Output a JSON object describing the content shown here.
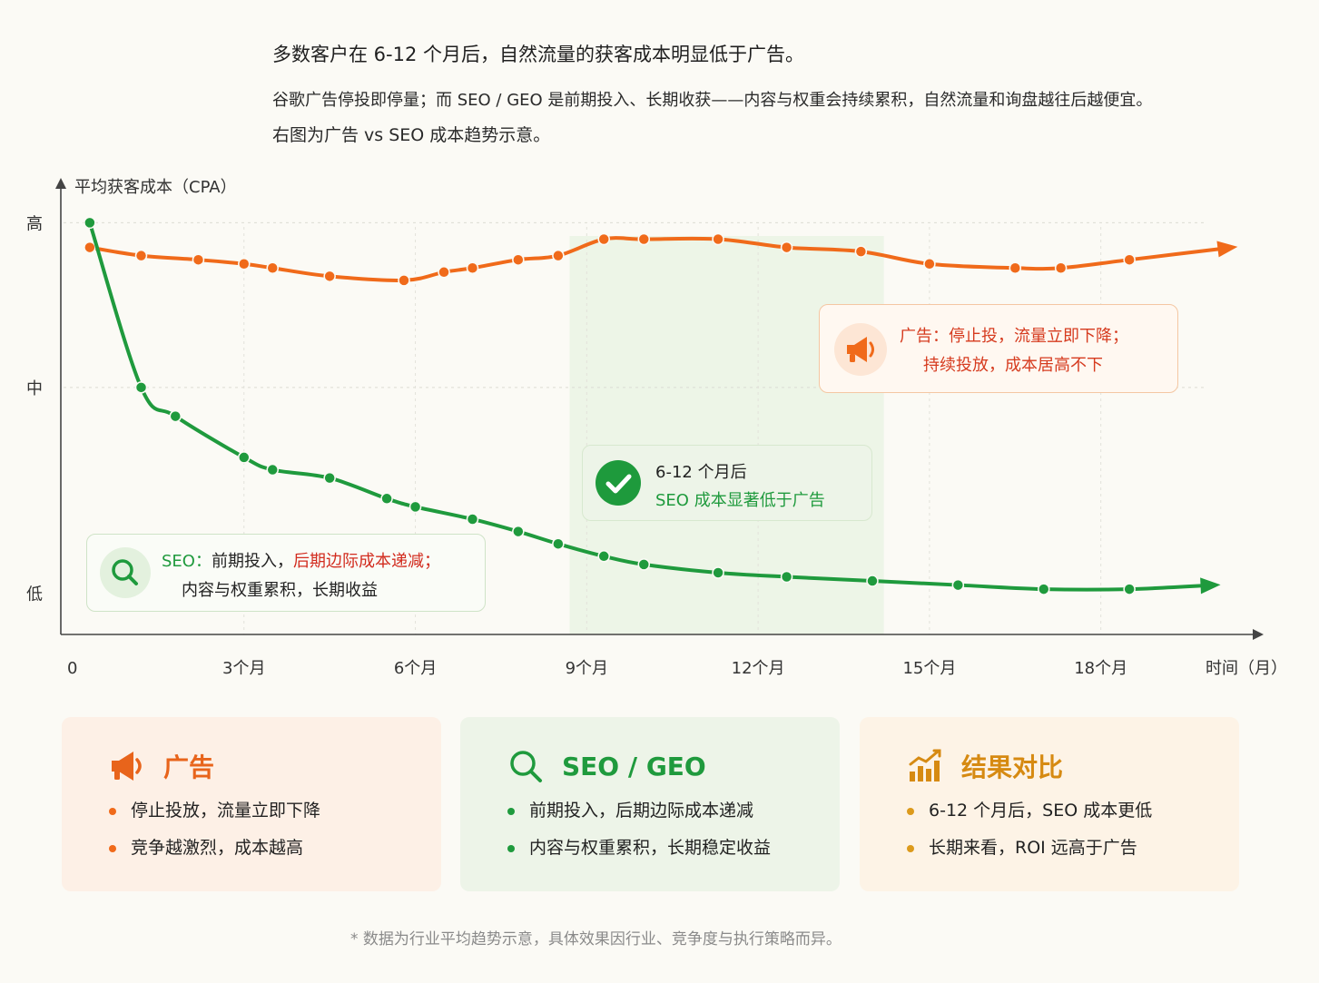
{
  "intro": {
    "headline": "多数客户在 6-12 个月后，自然流量的获客成本明显低于广告。",
    "line1": "谷歌广告停投即停量；而 SEO / GEO 是前期投入、长期收获——内容与权重会持续累积，自然流量和询盘越往后越便宜。",
    "line2": "右图为广告 vs SEO 成本趋势示意。"
  },
  "chart_data": {
    "type": "line",
    "ylabel": "平均获客成本（CPA）",
    "xlabel": "时间（月）",
    "x_ticks": [
      {
        "x": 0,
        "label": "0"
      },
      {
        "x": 3,
        "label": "3个月"
      },
      {
        "x": 6,
        "label": "6个月"
      },
      {
        "x": 9,
        "label": "9个月"
      },
      {
        "x": 12,
        "label": "12个月"
      },
      {
        "x": 15,
        "label": "15个月"
      },
      {
        "x": 18,
        "label": "18个月"
      }
    ],
    "y_ticks": [
      {
        "y": 0.1,
        "label": "低"
      },
      {
        "y": 0.6,
        "label": "中"
      },
      {
        "y": 1.0,
        "label": "高"
      }
    ],
    "xlim": [
      0,
      20.5
    ],
    "ylim": [
      0,
      1.1
    ],
    "highlight_range": [
      8.7,
      14.2
    ],
    "grid": true,
    "series": [
      {
        "name": "广告",
        "color": "#f06a1a",
        "points": [
          [
            0.3,
            0.94
          ],
          [
            1.2,
            0.92
          ],
          [
            2.2,
            0.91
          ],
          [
            3.0,
            0.9
          ],
          [
            3.5,
            0.89
          ],
          [
            4.5,
            0.87
          ],
          [
            5.8,
            0.86
          ],
          [
            6.5,
            0.88
          ],
          [
            7.0,
            0.89
          ],
          [
            7.8,
            0.91
          ],
          [
            8.5,
            0.92
          ],
          [
            9.3,
            0.96
          ],
          [
            10.0,
            0.96
          ],
          [
            11.3,
            0.96
          ],
          [
            12.5,
            0.94
          ],
          [
            13.8,
            0.93
          ],
          [
            15.0,
            0.9
          ],
          [
            16.5,
            0.89
          ],
          [
            17.3,
            0.89
          ],
          [
            18.5,
            0.91
          ],
          [
            20.3,
            0.94
          ]
        ]
      },
      {
        "name": "SEO",
        "color": "#1f9a3d",
        "points": [
          [
            0.3,
            1.0
          ],
          [
            1.2,
            0.6
          ],
          [
            1.8,
            0.53
          ],
          [
            3.0,
            0.43
          ],
          [
            3.5,
            0.4
          ],
          [
            4.5,
            0.38
          ],
          [
            5.5,
            0.33
          ],
          [
            6.0,
            0.31
          ],
          [
            7.0,
            0.28
          ],
          [
            7.8,
            0.25
          ],
          [
            8.5,
            0.22
          ],
          [
            9.3,
            0.19
          ],
          [
            10.0,
            0.17
          ],
          [
            11.3,
            0.15
          ],
          [
            12.5,
            0.14
          ],
          [
            14.0,
            0.13
          ],
          [
            15.5,
            0.12
          ],
          [
            17.0,
            0.11
          ],
          [
            18.5,
            0.11
          ],
          [
            20.0,
            0.12
          ]
        ]
      }
    ]
  },
  "callouts": {
    "ads": {
      "line1": "广告：停止投，流量立即下降；",
      "line2": "持续投放，成本居高不下"
    },
    "seo": {
      "prefix": "SEO：",
      "mid": "前期投入，",
      "red": "后期边际成本递减；",
      "line2": "内容与权重累积，长期收益"
    },
    "mid": {
      "line1": "6-12 个月后",
      "line2": "SEO 成本显著低于广告"
    }
  },
  "cards": [
    {
      "icon": "megaphone-icon",
      "title": "广告",
      "items": [
        "停止投放，流量立即下降",
        "竞争越激烈，成本越高"
      ]
    },
    {
      "icon": "search-icon",
      "title": "SEO / GEO",
      "items": [
        "前期投入，后期边际成本递减",
        "内容与权重累积，长期稳定收益"
      ]
    },
    {
      "icon": "bar-chart-icon",
      "title": "结果对比",
      "items": [
        "6-12 个月后，SEO 成本更低",
        "长期来看，ROI 远高于广告"
      ]
    }
  ],
  "footnote": "* 数据为行业平均趋势示意，具体效果因行业、竞争度与执行策略而异。"
}
